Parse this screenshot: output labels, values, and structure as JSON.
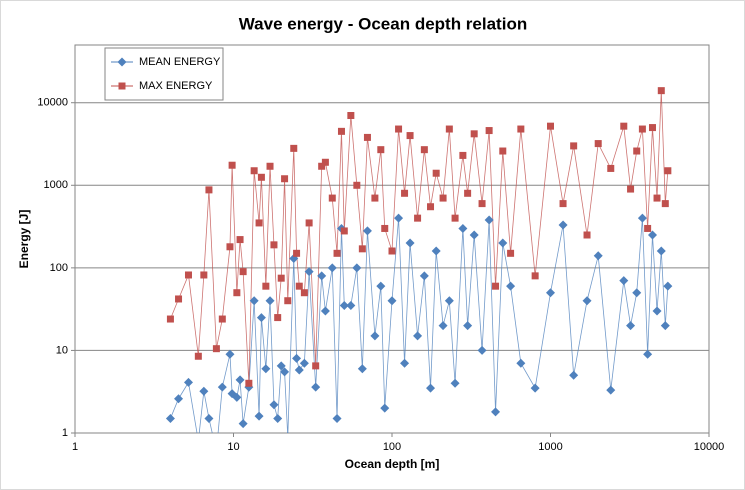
{
  "chart_data": {
    "type": "line",
    "title": "Wave energy - Ocean depth relation",
    "x_label": "Ocean depth [m]",
    "y_label": "Energy [J]",
    "xscale": "log",
    "yscale": "log",
    "grid": true,
    "legend": "upper left",
    "xlim": [
      1,
      10000
    ],
    "xticks": [
      1,
      10,
      100,
      1000,
      10000
    ],
    "ylim": [
      1,
      50000
    ],
    "yticks": [
      1,
      10,
      100,
      1000,
      10000
    ],
    "x": [
      4,
      4.5,
      5.2,
      6,
      6.5,
      7,
      7.8,
      8.5,
      9.5,
      9.8,
      10.5,
      11,
      11.5,
      12.5,
      13.5,
      14.5,
      15,
      16,
      17,
      18,
      19,
      20,
      21,
      22,
      24,
      25,
      26,
      28,
      30,
      33,
      36,
      38,
      42,
      45,
      48,
      50,
      55,
      60,
      65,
      70,
      78,
      85,
      90,
      100,
      110,
      120,
      130,
      145,
      160,
      175,
      190,
      210,
      230,
      250,
      280,
      300,
      330,
      370,
      410,
      450,
      500,
      560,
      650,
      800,
      1000,
      1200,
      1400,
      1700,
      2000,
      2400,
      2900,
      3200,
      3500,
      3800,
      4100,
      4400,
      4700,
      5000,
      5300,
      5500
    ],
    "series": [
      {
        "name": "MEAN ENERGY",
        "color": "#4f81bd",
        "marker": "diamond",
        "values": [
          1.5,
          2.6,
          4.1,
          0.8,
          3.2,
          1.5,
          0.6,
          3.6,
          9,
          3,
          2.7,
          4.4,
          1.3,
          3.6,
          40,
          1.6,
          25,
          6,
          40,
          2.2,
          1.5,
          6.5,
          5.5,
          0.9,
          130,
          8,
          5.8,
          7,
          90,
          3.6,
          80,
          30,
          100,
          1.5,
          300,
          35,
          35,
          100,
          6,
          280,
          15,
          60,
          2,
          40,
          400,
          7,
          200,
          15,
          80,
          3.5,
          160,
          20,
          40,
          4,
          300,
          20,
          250,
          10,
          380,
          1.8,
          200,
          60,
          7,
          3.5,
          50,
          330,
          5,
          40,
          140,
          3.3,
          70,
          20,
          50,
          400,
          9,
          250,
          30,
          160,
          20,
          60
        ]
      },
      {
        "name": "MAX ENERGY",
        "color": "#c0504d",
        "marker": "square",
        "values": [
          24,
          42,
          82,
          8.5,
          82,
          880,
          10.5,
          24,
          180,
          1750,
          50,
          220,
          90,
          4,
          1500,
          350,
          1250,
          60,
          1700,
          190,
          25,
          75,
          1200,
          40,
          2800,
          150,
          60,
          50,
          350,
          6.5,
          1700,
          1900,
          700,
          150,
          4500,
          280,
          7000,
          1000,
          170,
          3800,
          700,
          2700,
          300,
          160,
          4800,
          800,
          4000,
          400,
          2700,
          550,
          1400,
          700,
          4800,
          400,
          2300,
          800,
          4200,
          600,
          4600,
          60,
          2600,
          150,
          4800,
          80,
          5200,
          600,
          3000,
          250,
          3200,
          1600,
          5200,
          900,
          2600,
          4800,
          300,
          5000,
          700,
          14000,
          600,
          1500
        ]
      }
    ]
  }
}
